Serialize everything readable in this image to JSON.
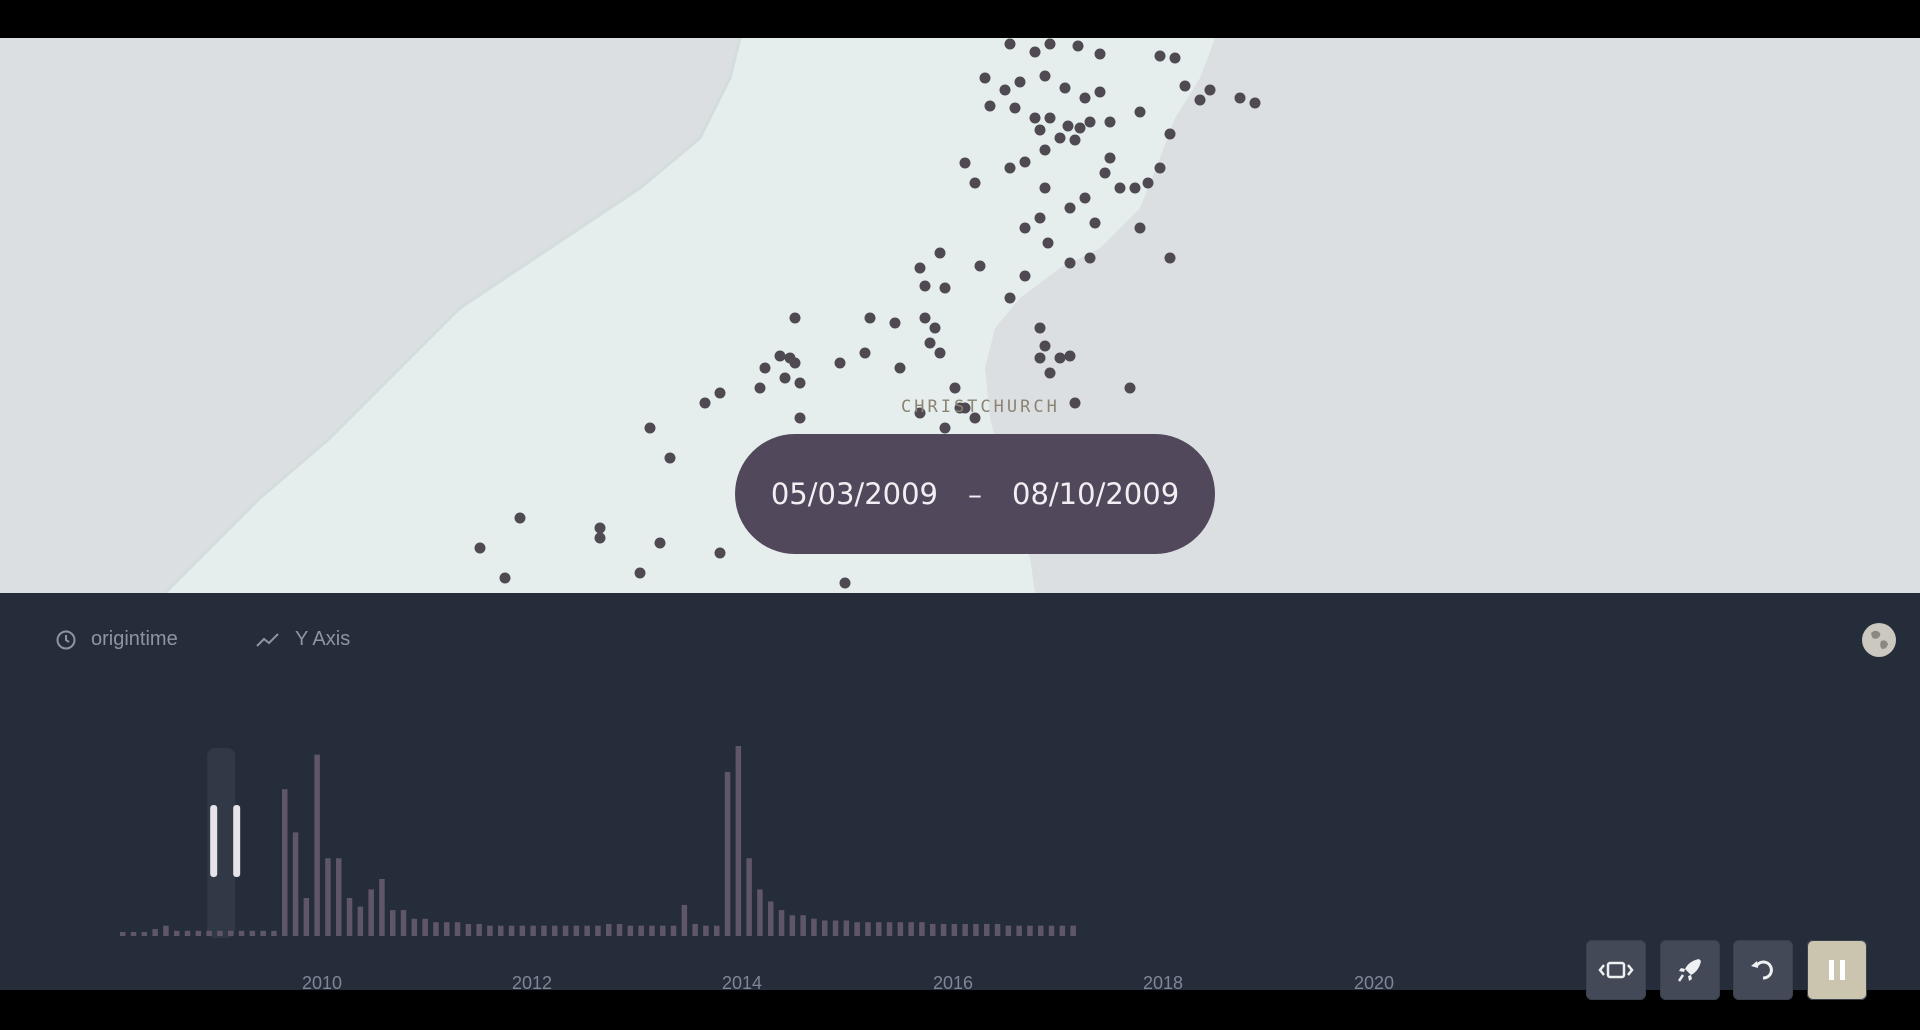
{
  "map": {
    "city_label": "CHRISTCHURCH",
    "land_color": "#e6eeed",
    "sea_color": "#dcdfe2",
    "point_color": "#4f4a52"
  },
  "date_range": {
    "start": "05/03/2009",
    "separator": "–",
    "end": "08/10/2009",
    "pill_color": "#51485b"
  },
  "panel": {
    "time_tab": {
      "icon": "clock-icon",
      "label": "origintime"
    },
    "yaxis_tab": {
      "icon": "trend-line-icon",
      "label": "Y Axis"
    },
    "globe": {
      "icon": "globe-icon"
    },
    "background": "#252c3a"
  },
  "chart_data": {
    "type": "bar",
    "x_tick_labels": [
      "2010",
      "2012",
      "2014",
      "2016",
      "2018",
      "2020"
    ],
    "bar_color": "#5f5669",
    "selected_bar_index": 9,
    "values": [
      2,
      2,
      2,
      4,
      6,
      3,
      3,
      3,
      3,
      3,
      3,
      3,
      3,
      3,
      3,
      85,
      60,
      22,
      105,
      45,
      45,
      22,
      17,
      27,
      33,
      15,
      15,
      10,
      10,
      8,
      8,
      8,
      7,
      7,
      6,
      6,
      6,
      6,
      6,
      6,
      6,
      6,
      6,
      6,
      6,
      7,
      7,
      6,
      6,
      6,
      6,
      6,
      18,
      7,
      6,
      6,
      95,
      110,
      45,
      27,
      20,
      15,
      12,
      12,
      10,
      9,
      9,
      9,
      8,
      8,
      8,
      8,
      8,
      8,
      8,
      7,
      7,
      7,
      7,
      7,
      7,
      7,
      6,
      6,
      6,
      6,
      6,
      6,
      6
    ]
  },
  "controls": [
    {
      "name": "fit-button",
      "icon": "fit-width-icon"
    },
    {
      "name": "rocket-button",
      "icon": "rocket-icon"
    },
    {
      "name": "reset-button",
      "icon": "rotate-icon"
    },
    {
      "name": "pause-button",
      "icon": "pause-icon"
    }
  ]
}
